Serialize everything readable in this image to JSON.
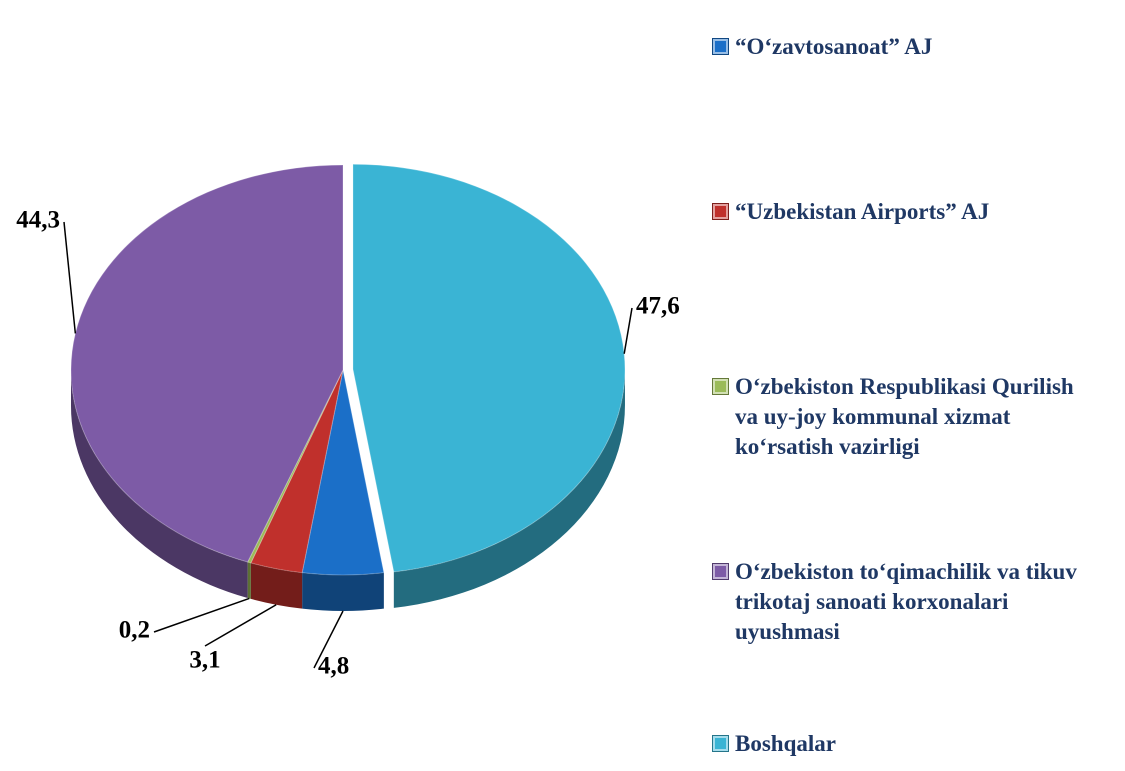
{
  "chart_data": {
    "type": "pie",
    "categories": [
      "“O‘zavtosanoat” AJ",
      "“Uzbekistan Airports” AJ",
      "O‘zbekiston Respublikasi Qurilish  va uy-joy kommunal xizmat ko‘rsatish vazirligi",
      "O‘zbekiston to‘qimachilik va tikuv trikotaj sanoati korxonalari uyushmasi",
      "Boshqalar"
    ],
    "values": [
      4.8,
      3.1,
      0.2,
      44.3,
      47.6
    ],
    "value_labels": [
      "4,8",
      "3,1",
      "0,2",
      "44,3",
      "47,6"
    ],
    "colors": [
      "#1b6fc8",
      "#c0302c",
      "#9bbb59",
      "#7d5ba6",
      "#3ab4d4"
    ],
    "legend": "right"
  }
}
